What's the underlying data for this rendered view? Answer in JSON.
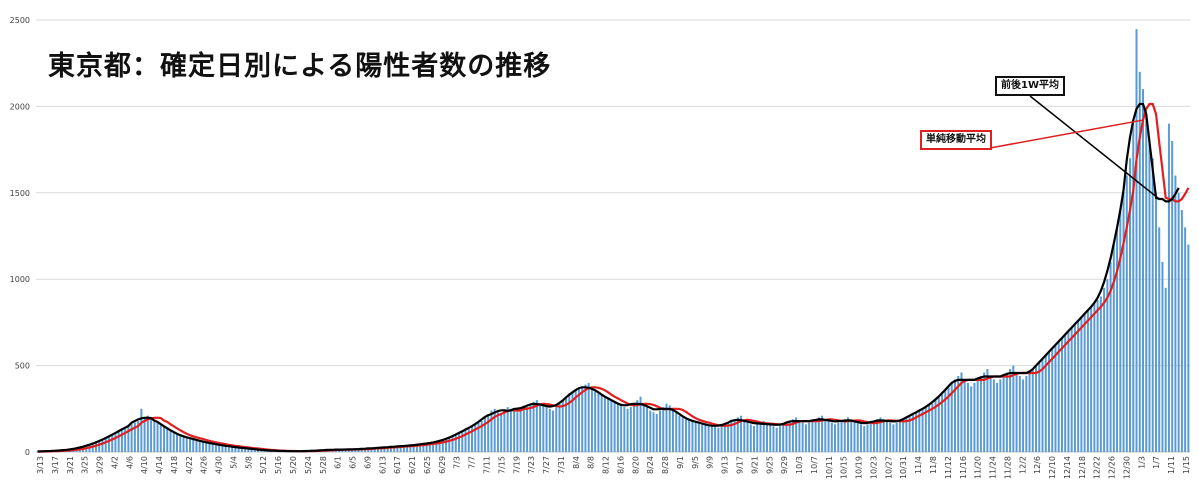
{
  "title": "東京都：確定日別による陽性者数の推移",
  "legend": {
    "ma_centered": "前後1W平均",
    "ma_simple": "単純移動平均"
  },
  "colors": {
    "bar": "#5b9bd5",
    "ma_centered": "#000000",
    "ma_simple": "#e02020",
    "grid": "#d9d9d9",
    "axis": "#bfbfbf"
  },
  "chart_data": {
    "type": "bar",
    "title": "東京都：確定日別による陽性者数の推移",
    "xlabel": "",
    "ylabel": "",
    "ylim": [
      0,
      2500
    ],
    "yticks": [
      0,
      500,
      1000,
      1500,
      2000,
      2500
    ],
    "grid": true,
    "tick_labels": [
      "3/13",
      "3/17",
      "3/21",
      "3/25",
      "3/29",
      "4/2",
      "4/6",
      "4/10",
      "4/14",
      "4/18",
      "4/22",
      "4/26",
      "4/30",
      "5/4",
      "5/8",
      "5/12",
      "5/16",
      "5/20",
      "5/24",
      "5/28",
      "6/1",
      "6/5",
      "6/9",
      "6/13",
      "6/17",
      "6/21",
      "6/25",
      "6/29",
      "7/3",
      "7/7",
      "7/11",
      "7/15",
      "7/19",
      "7/23",
      "7/27",
      "7/31",
      "8/4",
      "8/8",
      "8/12",
      "8/16",
      "8/20",
      "8/24",
      "8/28",
      "9/1",
      "9/5",
      "9/9",
      "9/13",
      "9/17",
      "9/21",
      "9/25",
      "9/29",
      "10/3",
      "10/7",
      "10/11",
      "10/15",
      "10/19",
      "10/23",
      "10/27",
      "10/31",
      "11/4",
      "11/8",
      "11/12",
      "11/16",
      "11/20",
      "11/24",
      "11/28",
      "12/2",
      "12/6",
      "12/10",
      "12/14",
      "12/18",
      "12/22",
      "12/26",
      "12/30",
      "1/3",
      "1/7",
      "1/11",
      "1/15"
    ],
    "series": [
      {
        "kind": "bar",
        "values": [
          2,
          3,
          4,
          5,
          6,
          7,
          8,
          9,
          10,
          12,
          14,
          16,
          20,
          25,
          30,
          35,
          42,
          48,
          55,
          62,
          70,
          80,
          90,
          100,
          110,
          120,
          130,
          145,
          150,
          160,
          170,
          180,
          250,
          200,
          210,
          195,
          180,
          175,
          165,
          150,
          140,
          120,
          110,
          100,
          95,
          90,
          85,
          80,
          75,
          70,
          65,
          60,
          55,
          50,
          48,
          45,
          42,
          40,
          35,
          32,
          30,
          28,
          26,
          24,
          22,
          20,
          18,
          16,
          14,
          12,
          10,
          9,
          8,
          7,
          6,
          6,
          5,
          5,
          5,
          5,
          4,
          4,
          5,
          5,
          6,
          7,
          8,
          10,
          10,
          12,
          13,
          12,
          14,
          14,
          15,
          16,
          14,
          14,
          16,
          18,
          17,
          18,
          20,
          22,
          24,
          25,
          24,
          27,
          28,
          30,
          30,
          32,
          34,
          35,
          36,
          38,
          40,
          42,
          44,
          46,
          48,
          52,
          55,
          58,
          62,
          68,
          75,
          82,
          90,
          100,
          110,
          120,
          130,
          140,
          150,
          160,
          170,
          180,
          200,
          220,
          240,
          250,
          230,
          220,
          240,
          260,
          250,
          240,
          230,
          250,
          270,
          260,
          280,
          290,
          300,
          280,
          270,
          260,
          250,
          240,
          260,
          280,
          300,
          320,
          340,
          350,
          360,
          370,
          380,
          390,
          400,
          370,
          350,
          340,
          330,
          320,
          310,
          300,
          290,
          280,
          270,
          260,
          250,
          260,
          280,
          300,
          320,
          280,
          260,
          240,
          230,
          220,
          240,
          260,
          280,
          270,
          250,
          230,
          210,
          200,
          190,
          185,
          180,
          175,
          170,
          165,
          160,
          155,
          150,
          145,
          140,
          150,
          160,
          170,
          180,
          190,
          200,
          210,
          180,
          170,
          160,
          150,
          160,
          170,
          180,
          170,
          160,
          150,
          140,
          150,
          160,
          170,
          180,
          190,
          200,
          180,
          170,
          160,
          170,
          180,
          190,
          200,
          210,
          190,
          180,
          170,
          160,
          170,
          180,
          190,
          200,
          190,
          180,
          170,
          160,
          150,
          160,
          170,
          180,
          190,
          200,
          190,
          180,
          170,
          160,
          170,
          180,
          190,
          200,
          210,
          220,
          230,
          240,
          250,
          260,
          270,
          280,
          300,
          320,
          340,
          360,
          380,
          400,
          420,
          440,
          460,
          420,
          400,
          380,
          400,
          420,
          440,
          460,
          480,
          440,
          420,
          400,
          420,
          440,
          460,
          480,
          500,
          460,
          440,
          420,
          440,
          460,
          480,
          500,
          520,
          540,
          560,
          580,
          600,
          620,
          640,
          660,
          680,
          700,
          720,
          740,
          760,
          780,
          800,
          820,
          840,
          860,
          880,
          900,
          950,
          1000,
          1100,
          1200,
          1300,
          1400,
          1500,
          1600,
          1700,
          1900,
          2447,
          2200,
          2100,
          1950,
          1800,
          1700,
          1500,
          1300,
          1100,
          950,
          1900,
          1800,
          1600,
          1500,
          1400,
          1300,
          1200
        ]
      },
      {
        "kind": "line",
        "name": "前後1W平均",
        "values": []
      },
      {
        "kind": "line",
        "name": "単純移動平均",
        "values": []
      }
    ]
  }
}
